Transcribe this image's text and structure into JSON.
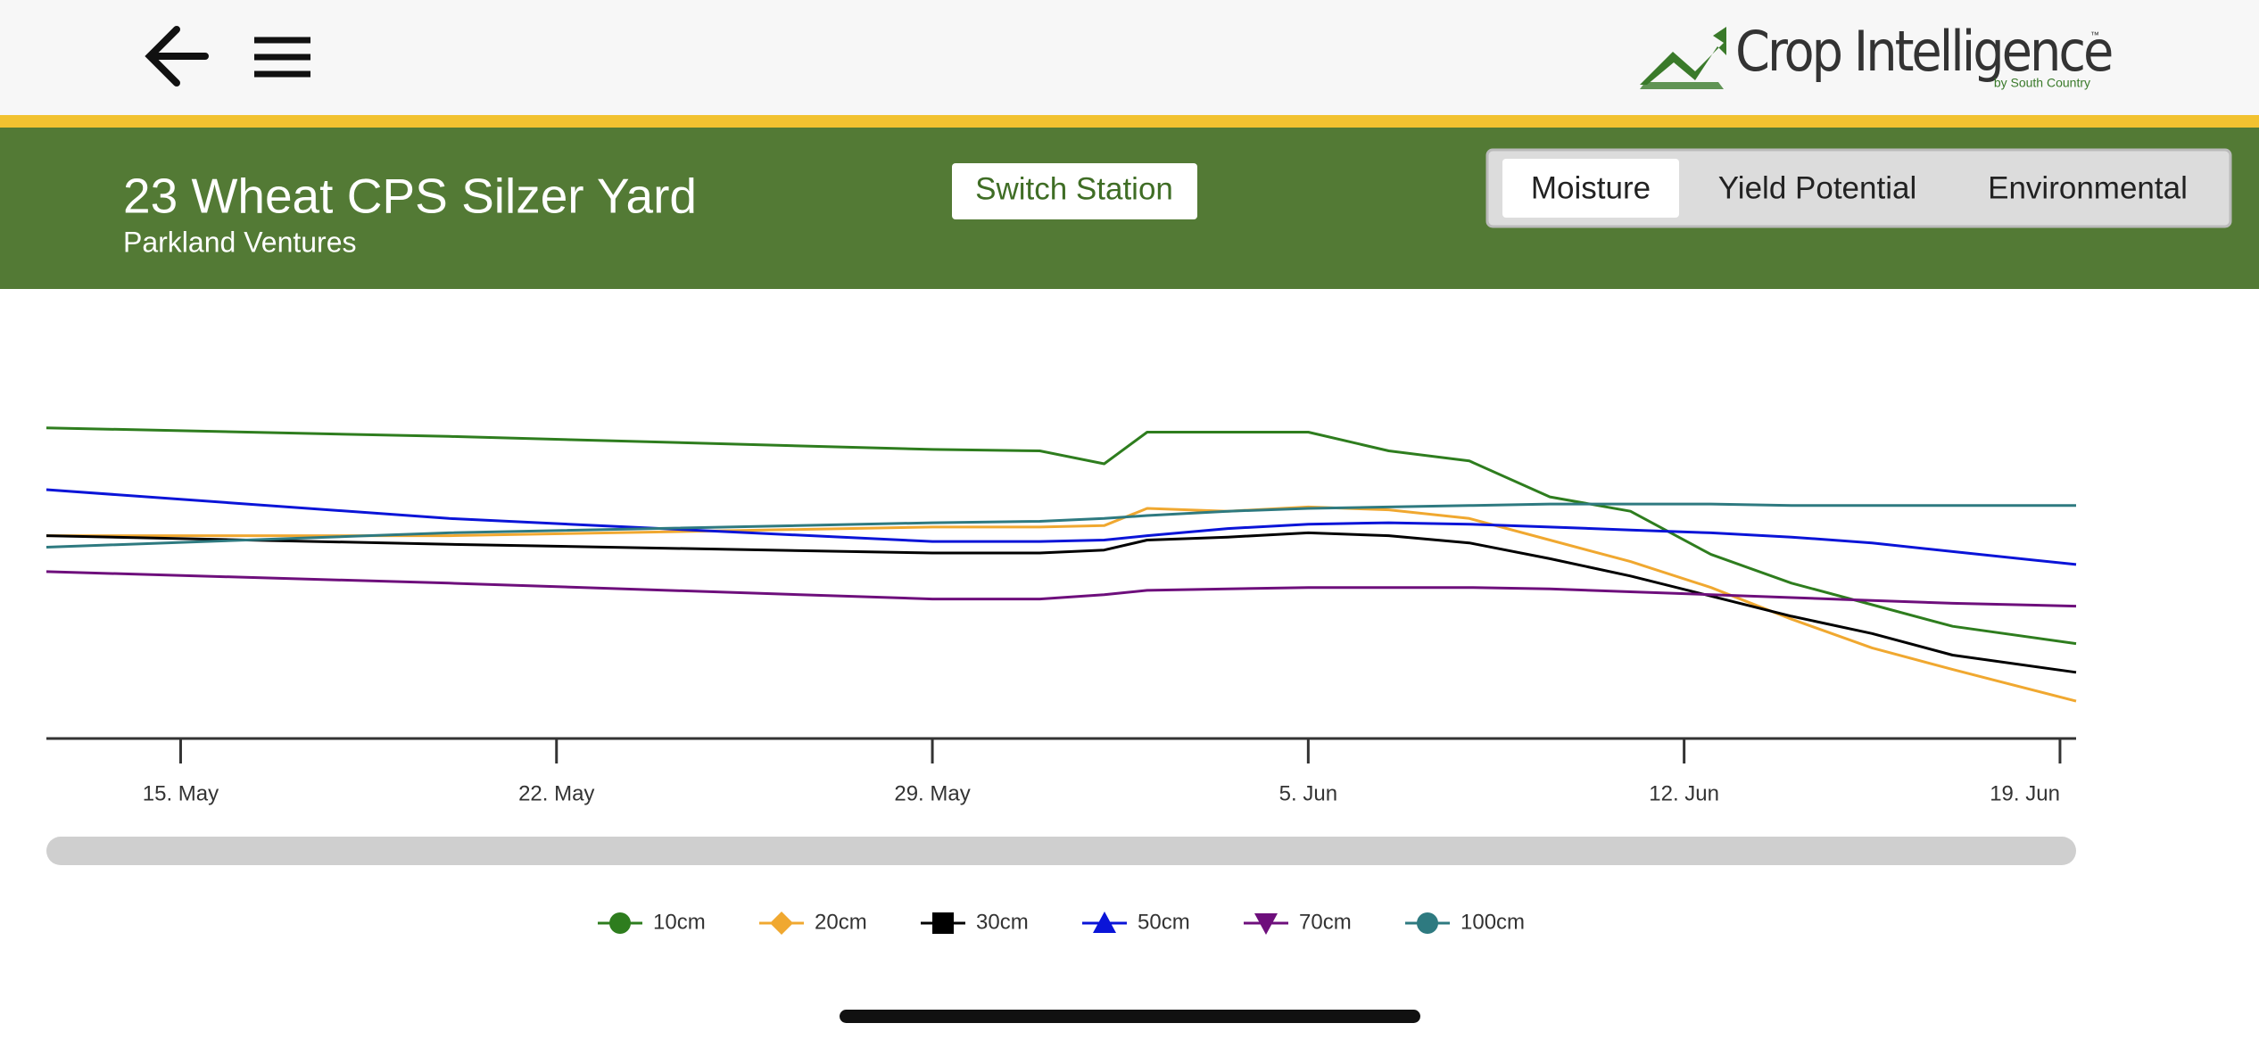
{
  "header": {
    "logo": "Crop Intelligence",
    "logo_tagline": "by South Country",
    "logo_mark": "™"
  },
  "station": {
    "title": "23 Wheat CPS Silzer Yard",
    "subtitle": "Parkland Ventures",
    "button": "Switch Station"
  },
  "tabs": [
    "Moisture",
    "Yield Potential",
    "Environmental"
  ],
  "active_tab": 0,
  "chart_data": {
    "type": "line",
    "x": [
      132.5,
      140,
      149,
      151,
      152.2,
      153,
      154.5,
      156,
      157.5,
      159,
      160.5,
      162,
      163.5,
      165,
      166.5,
      168,
      170.3
    ],
    "xlim": [
      132.5,
      170.3
    ],
    "xticks": [
      {
        "value": 135,
        "label": "15. May"
      },
      {
        "value": 142,
        "label": "22. May"
      },
      {
        "value": 149,
        "label": "29. May"
      },
      {
        "value": 156,
        "label": "5. Jun"
      },
      {
        "value": 163,
        "label": "12. Jun"
      },
      {
        "value": 170,
        "label": "19. Jun"
      }
    ],
    "ylim": [
      0,
      253
    ],
    "series": [
      {
        "name": "10cm",
        "color": "#2e7d1e",
        "marker": "circle",
        "values": [
          216,
          210,
          201,
          200,
          191,
          213,
          213,
          213,
          200,
          193,
          168,
          158,
          128,
          108,
          93,
          78,
          66
        ]
      },
      {
        "name": "20cm",
        "color": "#f0a830",
        "marker": "diamond",
        "values": [
          141,
          141,
          147,
          147,
          148,
          160,
          158,
          161,
          159,
          153,
          138,
          123,
          105,
          83,
          63,
          48,
          26
        ]
      },
      {
        "name": "30cm",
        "color": "#000000",
        "marker": "square",
        "values": [
          141,
          135,
          129,
          129,
          131,
          138,
          140,
          143,
          141,
          136,
          125,
          113,
          99,
          85,
          73,
          58,
          46
        ]
      },
      {
        "name": "50cm",
        "color": "#0a14d8",
        "marker": "triangle",
        "values": [
          173,
          153,
          137,
          137,
          138,
          141,
          146,
          149,
          150,
          149,
          147,
          145,
          143,
          140,
          136,
          130,
          121
        ]
      },
      {
        "name": "70cm",
        "color": "#6e0f7c",
        "marker": "triangle-down",
        "values": [
          116,
          108,
          97,
          97,
          100,
          103,
          104,
          105,
          105,
          105,
          104,
          102,
          100,
          98,
          96,
          94,
          92
        ]
      },
      {
        "name": "100cm",
        "color": "#2e7a80",
        "marker": "circle",
        "values": [
          133,
          143,
          150,
          151,
          153,
          155,
          158,
          160,
          161,
          162,
          163,
          163,
          163,
          162,
          162,
          162,
          162
        ]
      }
    ]
  }
}
